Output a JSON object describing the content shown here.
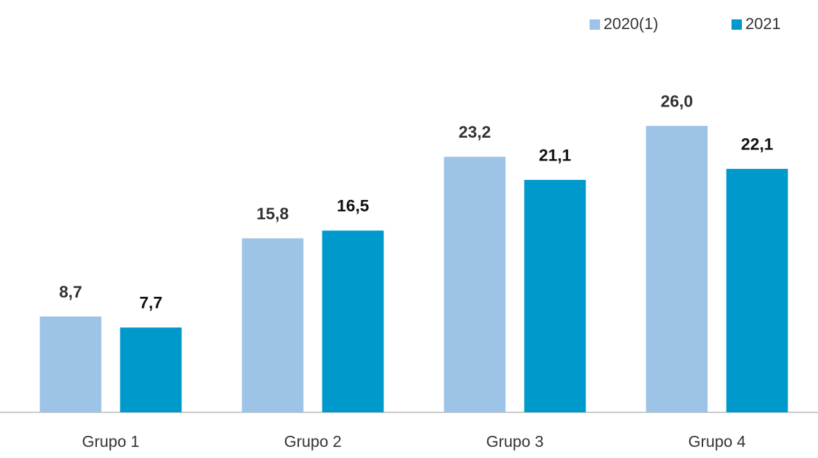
{
  "chart_data": {
    "type": "bar",
    "categories": [
      "Grupo 1",
      "Grupo 2",
      "Grupo 3",
      "Grupo 4"
    ],
    "series": [
      {
        "name": "2020(1)",
        "color": "#9dc3e6",
        "values": [
          8.7,
          15.8,
          23.2,
          26.0
        ],
        "value_labels": [
          "8,7",
          "15,8",
          "23,2",
          "26,0"
        ]
      },
      {
        "name": "2021",
        "color": "#0099cc",
        "values": [
          7.7,
          16.5,
          21.1,
          22.1
        ],
        "value_labels": [
          "7,7",
          "16,5",
          "21,1",
          "22,1"
        ]
      }
    ],
    "legend": "top-right"
  }
}
